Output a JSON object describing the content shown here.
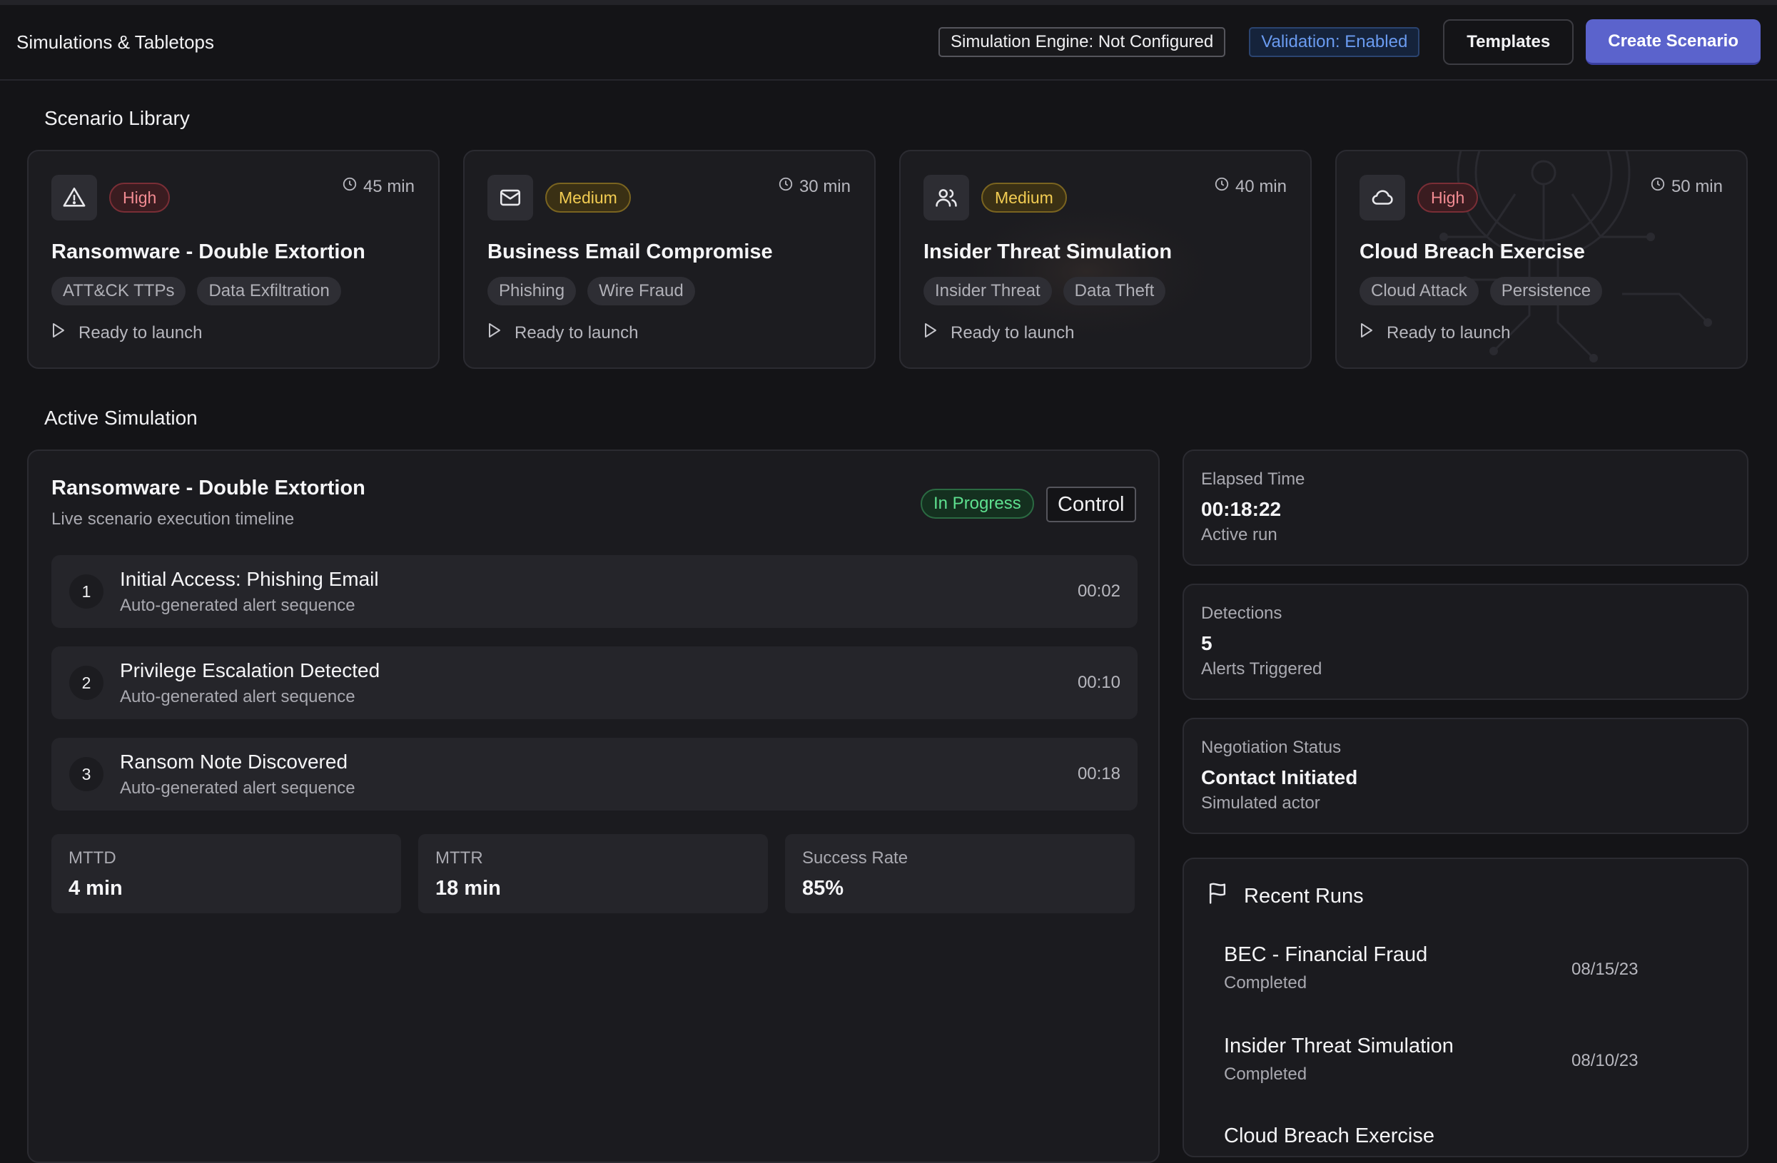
{
  "header": {
    "title": "Simulations & Tabletops",
    "engine_status": "Simulation Engine: Not Configured",
    "validation_status": "Validation: Enabled",
    "templates_label": "Templates",
    "create_label": "Create Scenario"
  },
  "library": {
    "title": "Scenario Library",
    "cards": [
      {
        "icon": "warning-triangle-icon",
        "severity": "High",
        "duration": "45 min",
        "title": "Ransomware - Double Extortion",
        "tags": [
          "ATT&CK TTPs",
          "Data Exfiltration"
        ],
        "action": "Ready to launch"
      },
      {
        "icon": "mail-icon",
        "severity": "Medium",
        "duration": "30 min",
        "title": "Business Email Compromise",
        "tags": [
          "Phishing",
          "Wire Fraud"
        ],
        "action": "Ready to launch"
      },
      {
        "icon": "users-icon",
        "severity": "Medium",
        "duration": "40 min",
        "title": "Insider Threat Simulation",
        "tags": [
          "Insider Threat",
          "Data Theft"
        ],
        "action": "Ready to launch"
      },
      {
        "icon": "cloud-icon",
        "severity": "High",
        "duration": "50 min",
        "title": "Cloud Breach Exercise",
        "tags": [
          "Cloud Attack",
          "Persistence"
        ],
        "action": "Ready to launch"
      }
    ]
  },
  "active": {
    "section_title": "Active Simulation",
    "title": "Ransomware - Double Extortion",
    "subtitle": "Live scenario execution timeline",
    "status": "In Progress",
    "control_label": "Control",
    "steps": [
      {
        "num": "1",
        "title": "Initial Access: Phishing Email",
        "sub": "Auto-generated alert sequence",
        "time": "00:02"
      },
      {
        "num": "2",
        "title": "Privilege Escalation Detected",
        "sub": "Auto-generated alert sequence",
        "time": "00:10"
      },
      {
        "num": "3",
        "title": "Ransom Note Discovered",
        "sub": "Auto-generated alert sequence",
        "time": "00:18"
      }
    ],
    "metrics": [
      {
        "label": "MTTD",
        "value": "4 min"
      },
      {
        "label": "MTTR",
        "value": "18 min"
      },
      {
        "label": "Success Rate",
        "value": "85%"
      }
    ]
  },
  "side": {
    "elapsed": {
      "label": "Elapsed Time",
      "value": "00:18:22",
      "sub": "Active run"
    },
    "detections": {
      "label": "Detections",
      "value": "5",
      "sub": "Alerts Triggered"
    },
    "negotiation": {
      "label": "Negotiation Status",
      "value": "Contact Initiated",
      "sub": "Simulated actor"
    },
    "recent": {
      "title": "Recent Runs",
      "runs": [
        {
          "name": "BEC - Financial Fraud",
          "status": "Completed",
          "date": "08/15/23"
        },
        {
          "name": "Insider Threat Simulation",
          "status": "Completed",
          "date": "08/10/23"
        },
        {
          "name": "Cloud Breach Exercise",
          "status": "",
          "date": ""
        }
      ]
    }
  },
  "colors": {
    "accent": "#5b63cc",
    "high": "#f28b92",
    "medium": "#f2cc52",
    "success": "#5ee08f",
    "info": "#6a9bf0"
  }
}
